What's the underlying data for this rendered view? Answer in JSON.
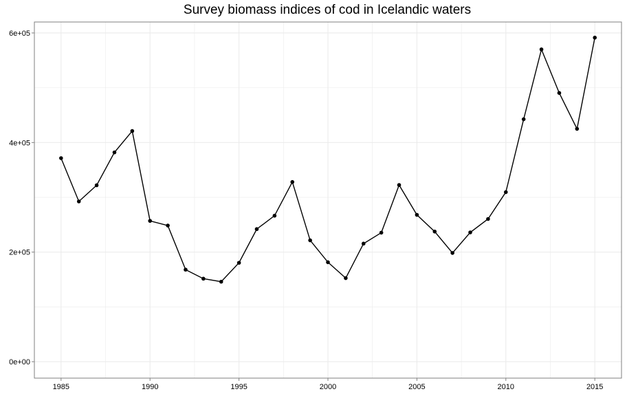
{
  "chart_data": {
    "type": "line",
    "title": "Survey biomass indices of cod in Icelandic waters",
    "xlabel": "",
    "ylabel": "",
    "x": [
      1985,
      1986,
      1987,
      1988,
      1989,
      1990,
      1991,
      1992,
      1993,
      1994,
      1995,
      1996,
      1997,
      1998,
      1999,
      2000,
      2001,
      2002,
      2003,
      2004,
      2005,
      2006,
      2007,
      2008,
      2009,
      2010,
      2011,
      2012,
      2013,
      2014,
      2015
    ],
    "series": [
      {
        "values": [
          371500,
          292500,
          322000,
          382000,
          421000,
          257000,
          248500,
          168000,
          151500,
          146000,
          180500,
          242000,
          266500,
          328000,
          221500,
          181500,
          152500,
          215500,
          235500,
          322500,
          268000,
          237500,
          198500,
          236000,
          260500,
          309500,
          442500,
          570000,
          490500,
          425000,
          591500
        ]
      }
    ],
    "xticks": [
      1985,
      1990,
      1995,
      2000,
      2005,
      2010,
      2015
    ],
    "yticks": [
      "0e+00",
      "2e+05",
      "4e+05",
      "6e+05"
    ],
    "ytick_values": [
      0,
      200000,
      400000,
      600000
    ],
    "xlim": [
      1983.5,
      2016.5
    ],
    "ylim": [
      -30000,
      620000
    ],
    "grid": true,
    "legend": "none",
    "colors": {
      "line": "#000000",
      "point": "#000000",
      "grid": "#ebebeb",
      "panel_border": "#7f7f7f"
    }
  }
}
